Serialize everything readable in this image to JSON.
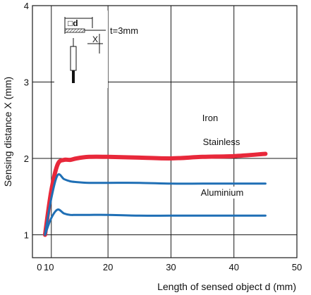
{
  "chart_data": {
    "type": "line",
    "xlabel": "Length of sensed object d (mm)",
    "ylabel": "Sensing distance X (mm)",
    "xlim": [
      8,
      50
    ],
    "ylim": [
      0.7,
      4
    ],
    "x_ticks": [
      "0",
      "10",
      "20",
      "30",
      "40",
      "50"
    ],
    "y_ticks": [
      "1",
      "2",
      "3",
      "4"
    ],
    "grid": true,
    "series": [
      {
        "name": "Iron",
        "color": "#e8283a",
        "x": [
          10,
          11,
          12,
          13,
          14,
          15,
          17,
          20,
          25,
          30,
          35,
          40,
          45
        ],
        "y": [
          1.0,
          1.58,
          1.92,
          1.98,
          1.98,
          2.0,
          2.02,
          2.02,
          2.01,
          2.0,
          2.02,
          2.03,
          2.06
        ]
      },
      {
        "name": "Stainless",
        "color": "#1f6fb5",
        "x": [
          10,
          11,
          12,
          13,
          14,
          15,
          17,
          20,
          25,
          30,
          35,
          40,
          45
        ],
        "y": [
          1.0,
          1.48,
          1.78,
          1.73,
          1.7,
          1.69,
          1.68,
          1.68,
          1.68,
          1.67,
          1.67,
          1.67,
          1.67
        ]
      },
      {
        "name": "Aluminium",
        "color": "#1f6fb5",
        "x": [
          10,
          11,
          12,
          13,
          14,
          15,
          17,
          20,
          25,
          30,
          35,
          40,
          45
        ],
        "y": [
          1.0,
          1.22,
          1.33,
          1.28,
          1.26,
          1.26,
          1.26,
          1.26,
          1.25,
          1.25,
          1.25,
          1.25,
          1.25
        ]
      }
    ],
    "inset": {
      "thickness_label": "t=3mm",
      "object_label": "□d",
      "distance_label": "X"
    }
  }
}
